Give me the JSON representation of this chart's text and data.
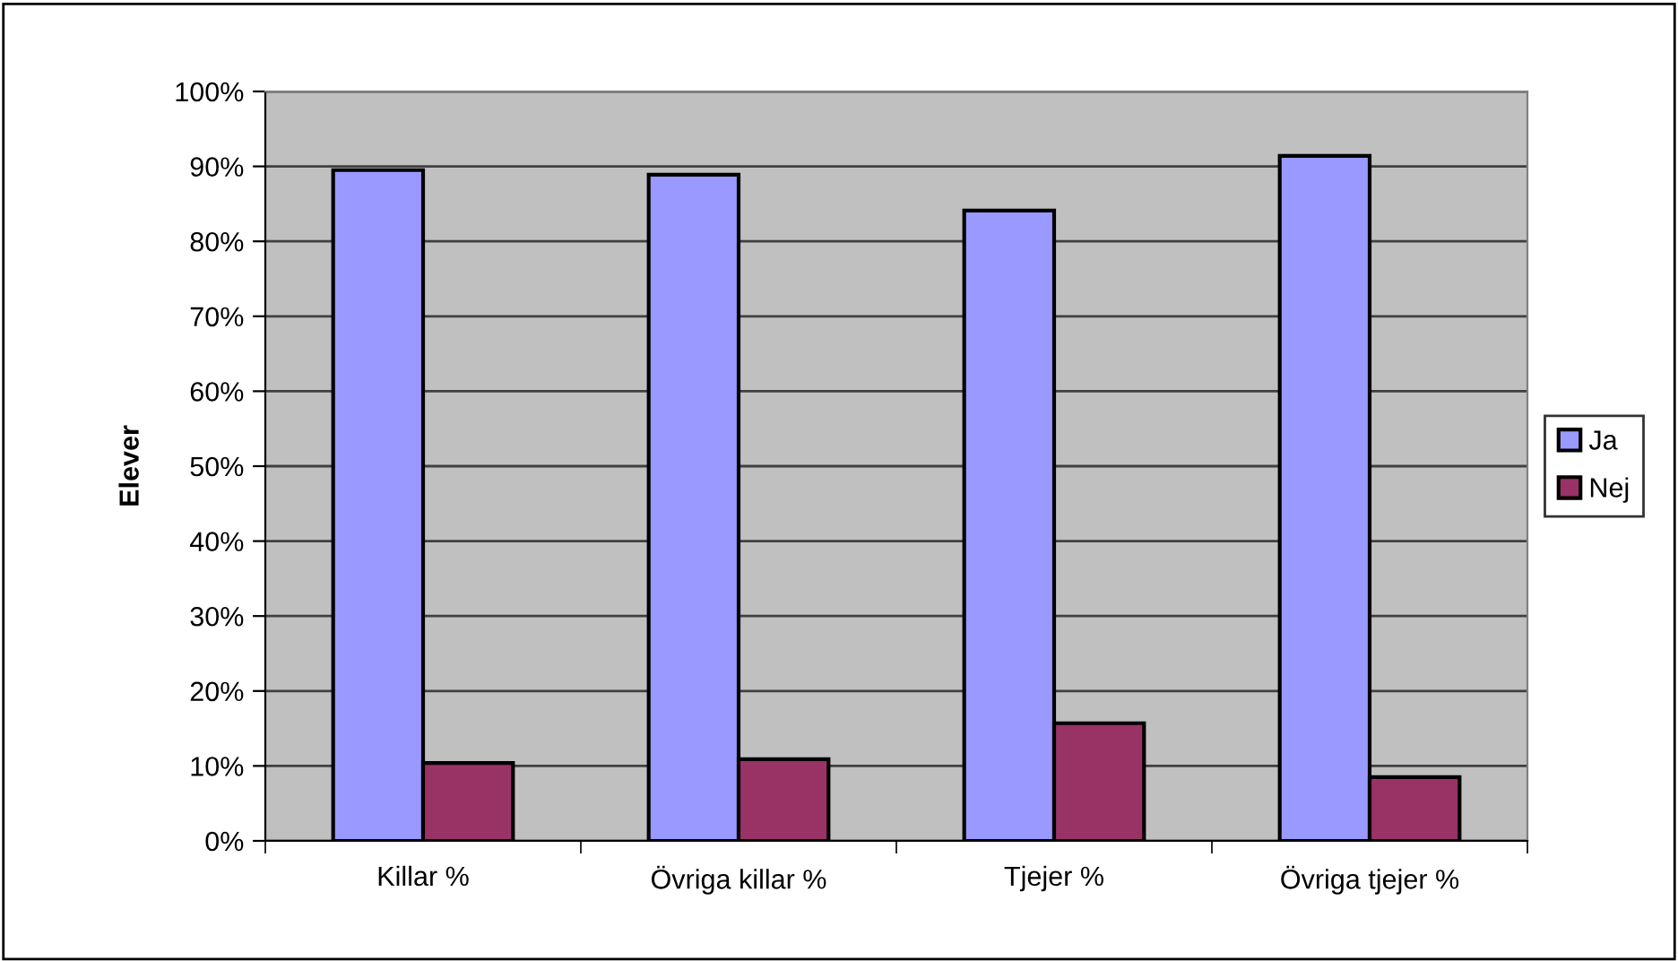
{
  "chart_data": {
    "type": "bar",
    "ylabel": "Elever",
    "categories": [
      "Killar %",
      "Övriga killar %",
      "Tjejer %",
      "Övriga tjejer %"
    ],
    "series": [
      {
        "name": "Ja",
        "color": "#9999ff",
        "values": [
          89.5,
          88.9,
          84.1,
          91.4
        ]
      },
      {
        "name": "Nej",
        "color": "#993366",
        "values": [
          10.4,
          10.9,
          15.7,
          8.5
        ]
      }
    ],
    "ylim": [
      0,
      100
    ],
    "yticks": [
      {
        "value": 0,
        "label": "0%"
      },
      {
        "value": 10,
        "label": "10%"
      },
      {
        "value": 20,
        "label": "20%"
      },
      {
        "value": 30,
        "label": "30%"
      },
      {
        "value": 40,
        "label": "40%"
      },
      {
        "value": 50,
        "label": "50%"
      },
      {
        "value": 60,
        "label": "60%"
      },
      {
        "value": 70,
        "label": "70%"
      },
      {
        "value": 80,
        "label": "80%"
      },
      {
        "value": 90,
        "label": "90%"
      },
      {
        "value": 100,
        "label": "100%"
      }
    ],
    "grid": "y",
    "legend": "right"
  }
}
